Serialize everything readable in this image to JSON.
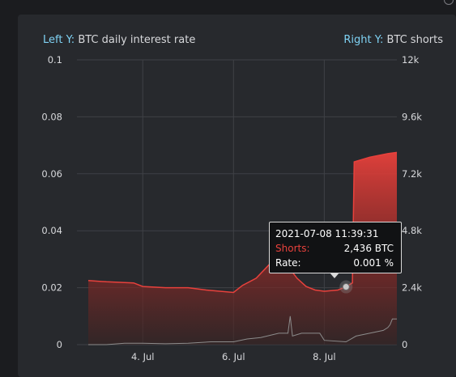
{
  "header": {
    "title_fragment": ""
  },
  "left_axis": {
    "key": "Left Y:",
    "label": "BTC daily interest rate"
  },
  "right_axis": {
    "key": "Right Y:",
    "label": "BTC shorts"
  },
  "tooltip": {
    "datetime": "2021-07-08 11:39:31",
    "shorts_label": "Shorts:",
    "shorts_value": "2,436 BTC",
    "rate_label": "Rate:",
    "rate_value": "0.001 %"
  },
  "colors": {
    "shorts_line": "#e8413c",
    "rate_line": "#8c8c8c",
    "axis_key": "#7fd2f4",
    "background": "#27292d"
  },
  "chart_data": {
    "type": "area",
    "title": "",
    "xlabel": "",
    "ylabel": "BTC daily interest rate",
    "y2label": "BTC shorts",
    "ylim": [
      0,
      0.1
    ],
    "y2lim": [
      0,
      12000
    ],
    "left_ticks": [
      "0",
      "0.02",
      "0.04",
      "0.06",
      "0.08",
      "0.1"
    ],
    "right_ticks": [
      "0",
      "2.4k",
      "4.8k",
      "7.2k",
      "9.6k",
      "12k"
    ],
    "x_ticks": [
      "4. Jul",
      "6. Jul",
      "8. Jul"
    ],
    "grid": true,
    "series": [
      {
        "name": "Shorts",
        "axis": "right",
        "x": [
          2.8,
          3.2,
          3.8,
          4.0,
          4.5,
          5.0,
          5.4,
          5.7,
          6.0,
          6.2,
          6.5,
          6.8,
          7.0,
          7.2,
          7.4,
          7.6,
          7.8,
          8.0,
          8.3,
          8.48,
          8.62,
          8.66,
          9.0,
          9.4,
          9.6
        ],
        "values": [
          2700,
          2650,
          2600,
          2450,
          2400,
          2400,
          2300,
          2250,
          2200,
          2500,
          2800,
          3400,
          3250,
          3300,
          2800,
          2450,
          2300,
          2250,
          2300,
          2436,
          2600,
          7700,
          7900,
          8050,
          8100
        ]
      },
      {
        "name": "Rate",
        "axis": "left",
        "x": [
          2.8,
          3.2,
          3.6,
          4.0,
          4.5,
          5.0,
          5.5,
          6.0,
          6.3,
          6.6,
          7.0,
          7.2,
          7.25,
          7.3,
          7.5,
          7.9,
          8.0,
          8.48,
          8.7,
          9.0,
          9.3,
          9.4,
          9.45,
          9.5,
          9.6
        ],
        "values": [
          0.0,
          0.0,
          0.0005,
          0.0005,
          0.0003,
          0.0005,
          0.001,
          0.001,
          0.002,
          0.0025,
          0.004,
          0.004,
          0.01,
          0.003,
          0.004,
          0.004,
          0.0015,
          0.001,
          0.003,
          0.004,
          0.005,
          0.006,
          0.007,
          0.009,
          0.009
        ]
      }
    ]
  }
}
